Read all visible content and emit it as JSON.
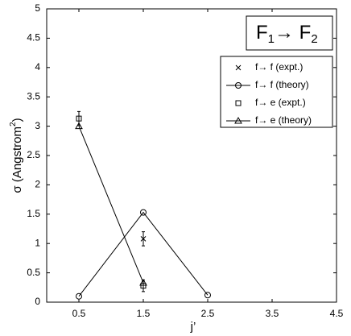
{
  "chart_data": {
    "type": "line",
    "xlabel": "j’",
    "ylabel": [
      "σ (Angstrom",
      "2",
      ")"
    ],
    "annotation": [
      "F",
      "1",
      "→ F",
      "2"
    ],
    "xlim": [
      0,
      4.5
    ],
    "xticks": [
      0.5,
      1.5,
      2.5,
      3.5,
      4.5
    ],
    "ylim": [
      0,
      5
    ],
    "yticks": [
      0,
      0.5,
      1,
      1.5,
      2,
      2.5,
      3,
      3.5,
      4,
      4.5,
      5
    ],
    "legend": "upper right",
    "series": [
      {
        "name": "f→ f (expt.)",
        "color": "#000000",
        "marker": "x",
        "line": false,
        "x": [
          1.5
        ],
        "values": [
          1.08
        ],
        "errors": [
          0.12
        ]
      },
      {
        "name": "f→ f (theory)",
        "color": "#000000",
        "marker": "o",
        "line": true,
        "x": [
          0.5,
          1.5,
          2.5
        ],
        "values": [
          0.1,
          1.53,
          0.12
        ]
      },
      {
        "name": "f→ e (expt.)",
        "color": "#000000",
        "marker": "s",
        "line": false,
        "x": [
          0.5,
          1.5
        ],
        "values": [
          3.13,
          0.28
        ],
        "errors": [
          0.12,
          0.1
        ]
      },
      {
        "name": "f→ e (theory)",
        "color": "#000000",
        "marker": "^",
        "line": true,
        "x": [
          0.5,
          1.5
        ],
        "values": [
          3.0,
          0.33
        ]
      }
    ]
  }
}
